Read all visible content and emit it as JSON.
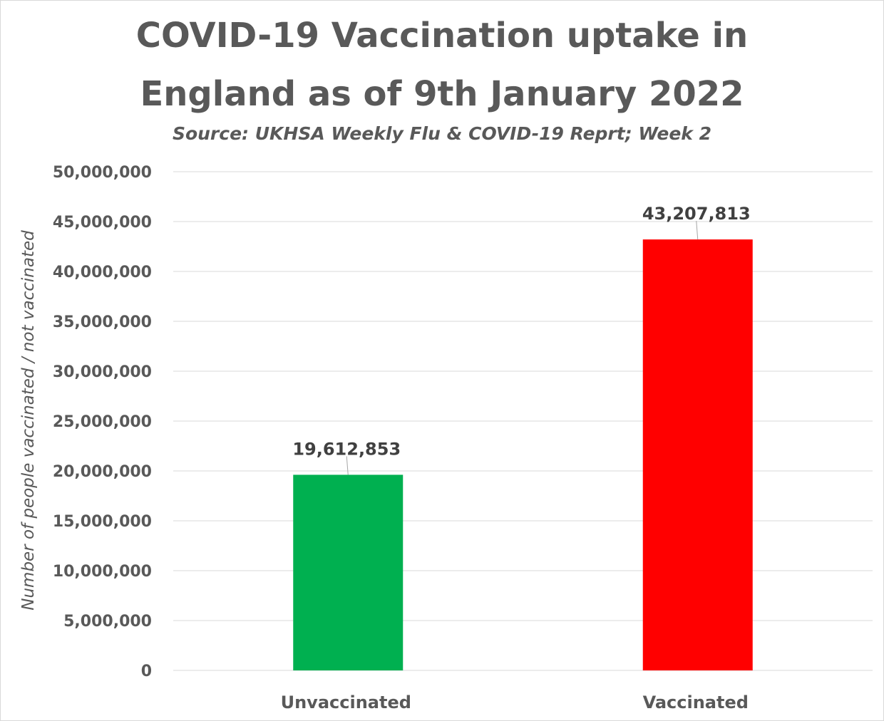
{
  "chart_data": {
    "type": "bar",
    "title_lines": [
      "COVID-19 Vaccination uptake in",
      "England as of 9th January 2022"
    ],
    "subtitle": "Source:  UKHSA Weekly Flu & COVID-19 Reprt; Week 2",
    "xlabel": "",
    "ylabel": "Number of people vaccinated / not vaccinated",
    "categories": [
      "Unvaccinated",
      "Vaccinated"
    ],
    "values": [
      19612853,
      43207813
    ],
    "data_labels": [
      "19,612,853",
      "43,207,813"
    ],
    "bar_colors": [
      "#00b050",
      "#ff0000"
    ],
    "ylim": [
      0,
      50000000
    ],
    "yticks": [
      0,
      5000000,
      10000000,
      15000000,
      20000000,
      25000000,
      30000000,
      35000000,
      40000000,
      45000000,
      50000000
    ],
    "ytick_labels": [
      "0",
      "5,000,000",
      "10,000,000",
      "15,000,000",
      "20,000,000",
      "25,000,000",
      "30,000,000",
      "35,000,000",
      "40,000,000",
      "45,000,000",
      "50,000,000"
    ],
    "grid": true,
    "legend": "none"
  },
  "colors": {
    "text": "#595959",
    "gridline": "#d9d9d9",
    "data_label": "#404040"
  }
}
